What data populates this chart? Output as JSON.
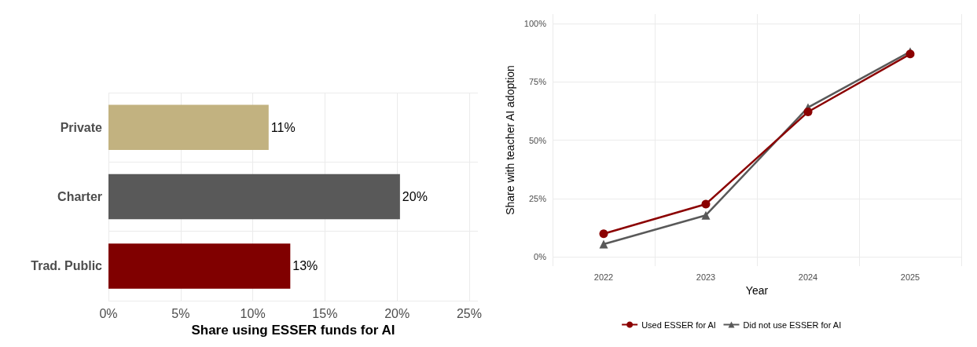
{
  "chart_data": [
    {
      "type": "bar",
      "orientation": "horizontal",
      "xlabel": "Share using ESSER funds for AI",
      "categories": [
        "Private",
        "Charter",
        "Trad. Public"
      ],
      "values": [
        11.1,
        20.2,
        12.6
      ],
      "colors": [
        "#c2b280",
        "#595959",
        "#800000"
      ],
      "value_labels": [
        "11%",
        "20%",
        "13%"
      ],
      "xlim": [
        0,
        25.6
      ],
      "xticks": [
        {
          "value": 0,
          "label": "0%"
        },
        {
          "value": 5,
          "label": "5%"
        },
        {
          "value": 10,
          "label": "10%"
        },
        {
          "value": 15,
          "label": "15%"
        },
        {
          "value": 20,
          "label": "20%"
        },
        {
          "value": 25,
          "label": "25%"
        }
      ],
      "grid": true
    },
    {
      "type": "line",
      "xlabel": "Year",
      "ylabel": "Share with teacher AI adoption",
      "categories": [
        "2022",
        "2023",
        "2024",
        "2025"
      ],
      "series": [
        {
          "name": "Used ESSER for AI",
          "color": "#8b0000",
          "marker": "circle",
          "values": [
            9.9,
            22.6,
            62.1,
            86.9
          ]
        },
        {
          "name": "Did not use ESSER for AI",
          "color": "#595959",
          "marker": "triangle",
          "values": [
            5.4,
            17.8,
            64.0,
            87.9
          ]
        }
      ],
      "ylim": [
        -4,
        104
      ],
      "yticks": [
        {
          "value": 0,
          "label": "0%"
        },
        {
          "value": 25,
          "label": "25%"
        },
        {
          "value": 50,
          "label": "50%"
        },
        {
          "value": 75,
          "label": "75%"
        },
        {
          "value": 100,
          "label": "100%"
        }
      ],
      "grid": true,
      "legend": "bottom",
      "line_style": "solid"
    }
  ]
}
